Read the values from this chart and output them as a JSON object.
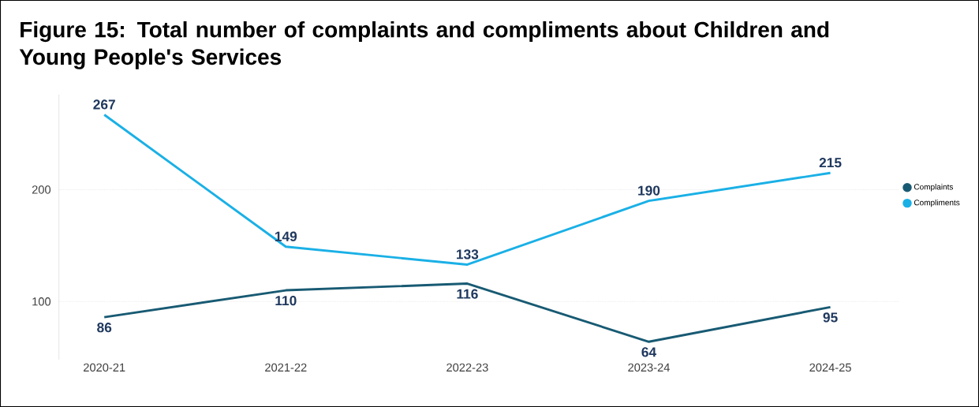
{
  "chart_data": {
    "type": "line",
    "title": "Figure 15: Total number of complaints and compliments about Children and Young People's Services",
    "categories": [
      "2020-21",
      "2021-22",
      "2022-23",
      "2023-24",
      "2024-25"
    ],
    "series": [
      {
        "name": "Complaints",
        "color": "#185a73",
        "values": [
          86,
          110,
          116,
          64,
          95
        ]
      },
      {
        "name": "Compliments",
        "color": "#1ab0e6",
        "values": [
          267,
          149,
          133,
          190,
          215
        ]
      }
    ],
    "ylim": [
      48,
      285
    ],
    "yticks": [
      100,
      200
    ],
    "grid": "y",
    "legend": "right",
    "data_labels": true,
    "marker": "none",
    "line_style": "solid"
  }
}
